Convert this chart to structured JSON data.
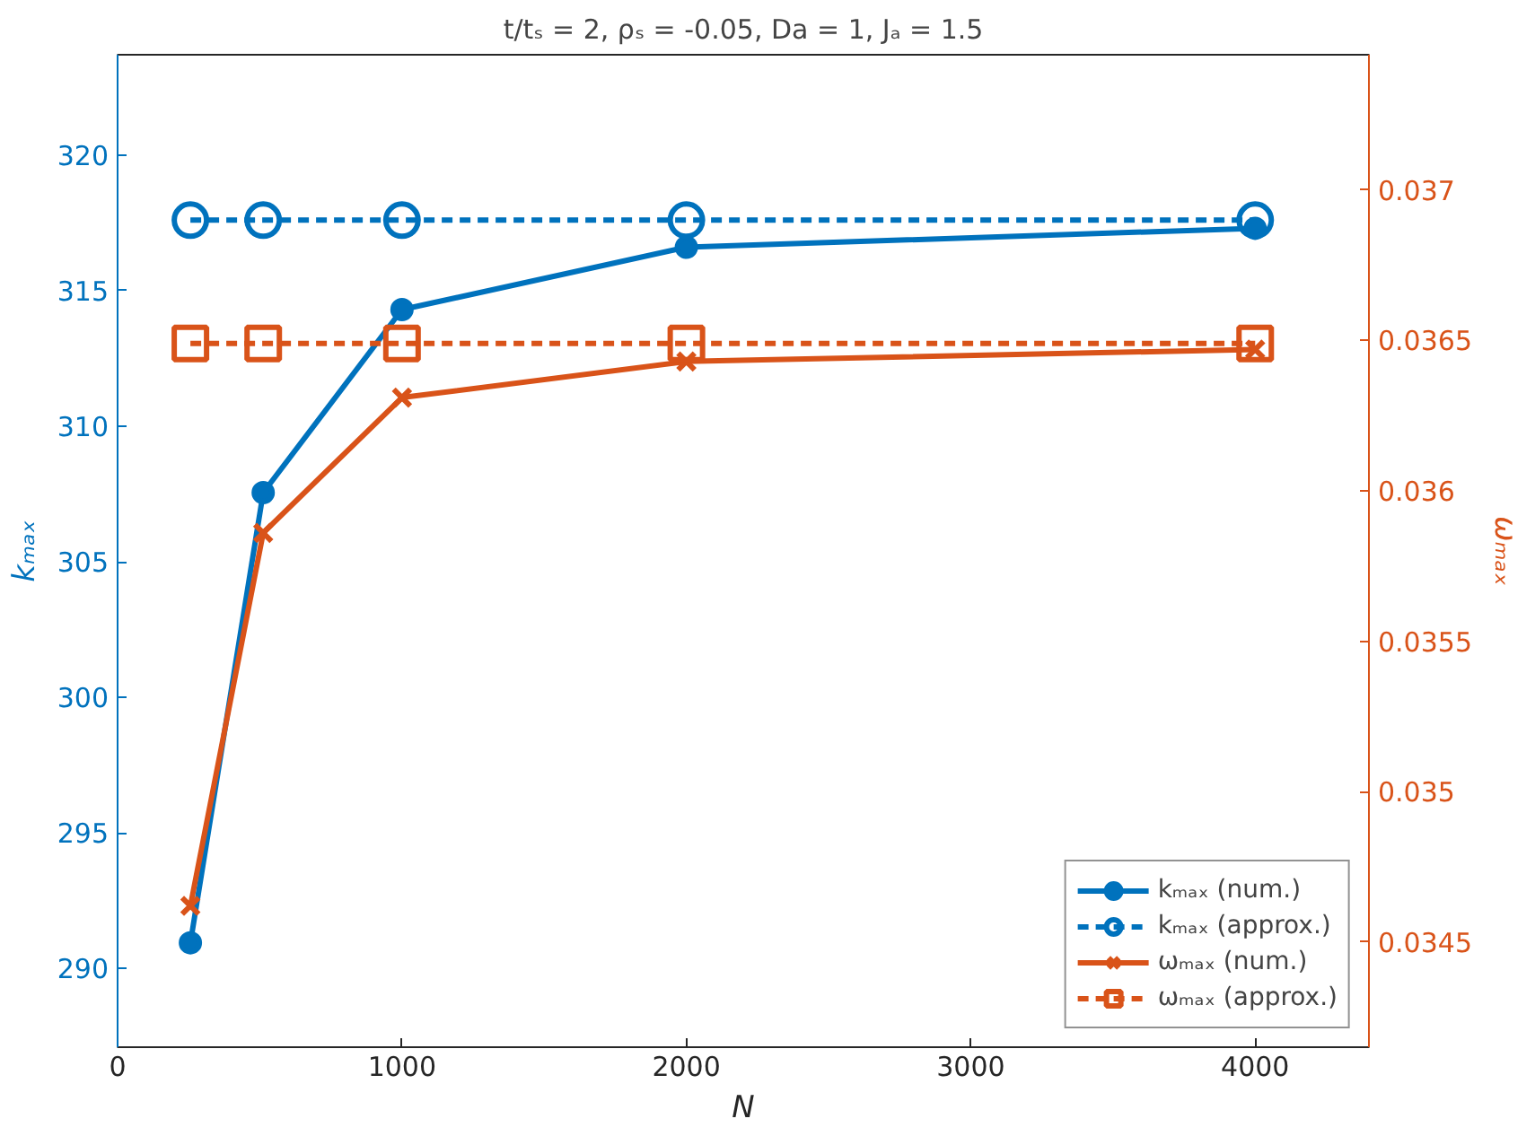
{
  "chart_data": {
    "type": "line",
    "title": "t/tₛ = 2, ρₛ = -0.05, Da = 1, Jₐ = 1.5",
    "xlabel": "N",
    "ylabel": "kₘₐₓ",
    "y2label": "ωₘₐₓ",
    "x": [
      256,
      512,
      1000,
      2000,
      4000
    ],
    "xlim": [
      0,
      4400
    ],
    "xticks": [
      0,
      1000,
      2000,
      3000,
      4000
    ],
    "ylim": [
      287.1,
      323.7
    ],
    "yticks": [
      290,
      295,
      300,
      305,
      310,
      315,
      320
    ],
    "y2lim": [
      0.03415,
      0.03745
    ],
    "y2ticks": [
      {
        "value": 0.0345,
        "label": "0.0345"
      },
      {
        "value": 0.035,
        "label": "0.035"
      },
      {
        "value": 0.0355,
        "label": "0.0355"
      },
      {
        "value": 0.036,
        "label": "0.036"
      },
      {
        "value": 0.0365,
        "label": "0.0365"
      },
      {
        "value": 0.037,
        "label": "0.037"
      }
    ],
    "series": [
      {
        "name": "kₘₐₓ (num.)",
        "color": "#0072bd",
        "values": [
          290.95,
          307.55,
          314.3,
          316.6,
          317.3
        ],
        "marker": "circle",
        "line_style": "solid"
      },
      {
        "name": "kₘₐₓ (approx.)",
        "color": "#0072bd",
        "values": [
          317.6,
          317.6,
          317.6,
          317.6,
          317.6
        ],
        "marker": "circle",
        "line_style": "dashed"
      },
      {
        "name": "ωₘₐₓ (num.)",
        "color": "#d95319",
        "values": [
          0.03462,
          0.03586,
          0.03631,
          0.03643,
          0.03647
        ],
        "marker": "cross",
        "line_style": "solid",
        "axis": "y2"
      },
      {
        "name": "ωₘₐₓ (approx.)",
        "color": "#d95319",
        "values": [
          0.03649,
          0.03649,
          0.03649,
          0.03649,
          0.03649
        ],
        "marker": "square",
        "line_style": "dashed",
        "axis": "y2"
      }
    ],
    "legend": "bottom right",
    "grid": false
  }
}
